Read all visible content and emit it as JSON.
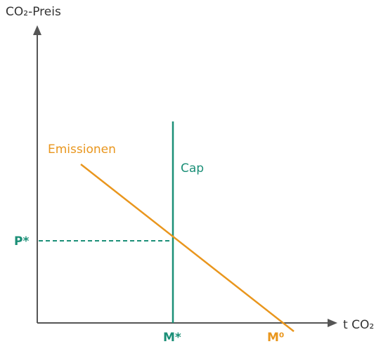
{
  "axes": {
    "y_label": "CO₂-Preis",
    "x_label": "t CO₂"
  },
  "lines": {
    "emissions": "Emissionen",
    "cap": "Cap"
  },
  "markers": {
    "price": "P*",
    "cap_quantity": "M*",
    "baseline_quantity": "M⁰"
  }
}
